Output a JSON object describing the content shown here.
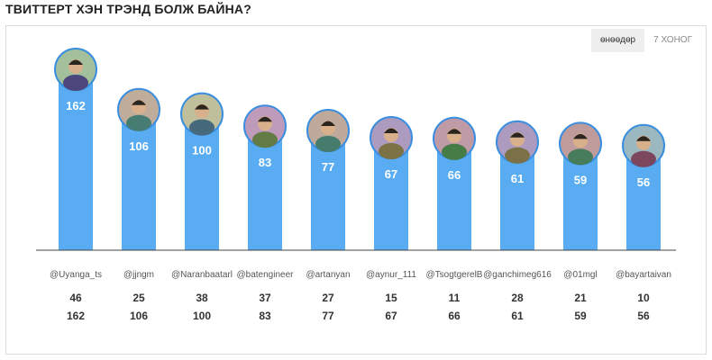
{
  "header": {
    "title": "ТВИТТЕРТ ХЭН ТРЭНД БОЛЖ БАЙНА?"
  },
  "tabs": [
    {
      "label": "өнөөдөр",
      "active": true
    },
    {
      "label": "7 ХОНОГ",
      "active": false
    }
  ],
  "colors": {
    "bar": "#59acf2",
    "ring": "#3a8ee0",
    "axis": "#444444"
  },
  "chart_data": {
    "type": "bar",
    "categories": [
      "@Uyanga_ts",
      "@jjngm",
      "@Naranbaatarl",
      "@batengineer",
      "@artanyan",
      "@aynur_111",
      "@TsogtgerelB",
      "@ganchimeg616",
      "@01mgl",
      "@bayartaivan"
    ],
    "values": [
      162,
      106,
      100,
      83,
      77,
      67,
      66,
      61,
      59,
      56
    ],
    "row1": [
      46,
      25,
      38,
      37,
      27,
      15,
      11,
      28,
      21,
      10
    ],
    "row2": [
      162,
      106,
      100,
      83,
      77,
      67,
      66,
      61,
      59,
      56
    ],
    "ylim": [
      0,
      180
    ]
  }
}
